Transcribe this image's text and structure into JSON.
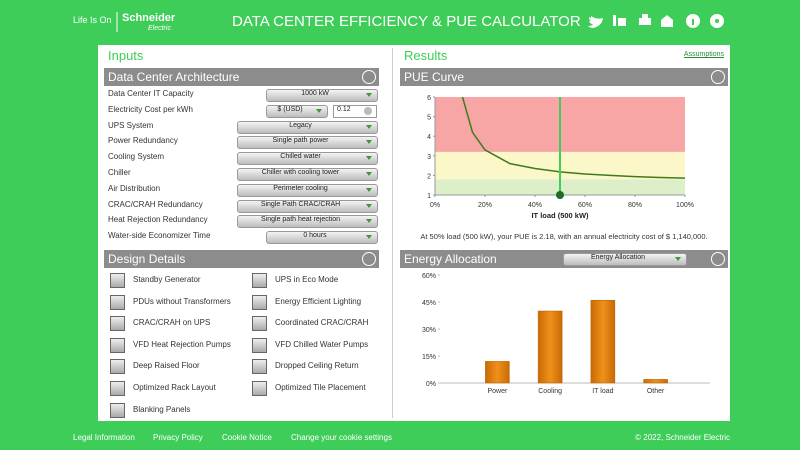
{
  "header": {
    "tagline": "Life Is On",
    "brand": "Schneider",
    "brand_sub": "Electric",
    "title": "DATA CENTER EFFICIENCY & PUE CALCULATOR"
  },
  "inputs": {
    "heading": "Inputs",
    "architecture": {
      "title": "Data Center Architecture",
      "fields": [
        {
          "label": "Data Center IT Capacity",
          "controls": [
            "1000 kW"
          ]
        },
        {
          "label": "Electricity Cost per kWh",
          "controls": [
            "$ (USD)",
            "0.12"
          ]
        },
        {
          "label": "UPS System",
          "controls": [
            "Legacy"
          ]
        },
        {
          "label": "Power Redundancy",
          "controls": [
            "Single path power"
          ]
        },
        {
          "label": "Cooling System",
          "controls": [
            "Chilled water"
          ]
        },
        {
          "label": "Chiller",
          "controls": [
            "Chiller with cooling tower"
          ]
        },
        {
          "label": "Air Distribution",
          "controls": [
            "Perimeter cooling"
          ]
        },
        {
          "label": "CRAC/CRAH Redundancy",
          "controls": [
            "Single Path CRAC/CRAH"
          ]
        },
        {
          "label": "Heat Rejection Redundancy",
          "controls": [
            "Single path heat rejection"
          ]
        },
        {
          "label": "Water-side Economizer Time",
          "controls": [
            "0 hours"
          ]
        }
      ]
    },
    "design": {
      "title": "Design Details",
      "options": [
        "Standby Generator",
        "PDUs without Transformers",
        "CRAC/CRAH on UPS",
        "VFD Heat Rejection Pumps",
        "Deep Raised Floor",
        "Optimized Rack Layout",
        "Blanking Panels",
        "UPS in Eco Mode",
        "Energy Efficient Lighting",
        "Coordinated CRAC/CRAH",
        "VFD Chilled Water Pumps",
        "Dropped Ceiling Return",
        "Optimized Tile Placement"
      ]
    }
  },
  "results": {
    "heading": "Results",
    "assumptions": "Assumptions",
    "pue_curve": {
      "title": "PUE Curve",
      "type": "line",
      "x": [
        11,
        15,
        20,
        30,
        40,
        50,
        60,
        70,
        80,
        90,
        100
      ],
      "values": [
        6,
        4.2,
        3.3,
        2.6,
        2.35,
        2.18,
        2.07,
        2.0,
        1.94,
        1.89,
        1.86
      ],
      "color": "#3f7a1f",
      "xlim": [
        0,
        100
      ],
      "xticks": [
        {
          "value": 0,
          "label": "0%"
        },
        {
          "value": 20,
          "label": "20%"
        },
        {
          "value": 40,
          "label": "40%"
        },
        {
          "value": 60,
          "label": "60%"
        },
        {
          "value": 80,
          "label": "80%"
        },
        {
          "value": 100,
          "label": "100%"
        }
      ],
      "ylim": [
        1,
        6
      ],
      "yticks": [
        1,
        2,
        3,
        4,
        5,
        6
      ],
      "xlabel": "IT load (500 kW)",
      "marker_x": 50,
      "marker_color": "#3dcd58",
      "bands": [
        {
          "from": 1,
          "to": 1.8,
          "color": "#dcefc8"
        },
        {
          "from": 1.8,
          "to": 3.2,
          "color": "#fbf7c8"
        },
        {
          "from": 3.2,
          "to": 6,
          "color": "#f7a5a5"
        }
      ],
      "caption": "At 50% load (500 kW), your PUE is 2.18, with an annual electricity cost of $ 1,140,000."
    },
    "energy": {
      "title": "Energy Allocation",
      "selector": "Energy Allocation",
      "type": "bar",
      "categories": [
        "Power",
        "Cooling",
        "IT load",
        "Other"
      ],
      "values": [
        12,
        40,
        46,
        2
      ],
      "color": "#f0901a",
      "ylim": [
        0,
        60
      ],
      "yticks": [
        {
          "value": 0,
          "label": "0%"
        },
        {
          "value": 15,
          "label": "15%"
        },
        {
          "value": 30,
          "label": "30%"
        },
        {
          "value": 45,
          "label": "45%"
        },
        {
          "value": 60,
          "label": "60%"
        }
      ]
    }
  },
  "footer": {
    "links": [
      "Legal Information",
      "Privacy Policy",
      "Cookie Notice",
      "Change your cookie settings"
    ],
    "copyright": "© 2022, Schneider Electric"
  }
}
